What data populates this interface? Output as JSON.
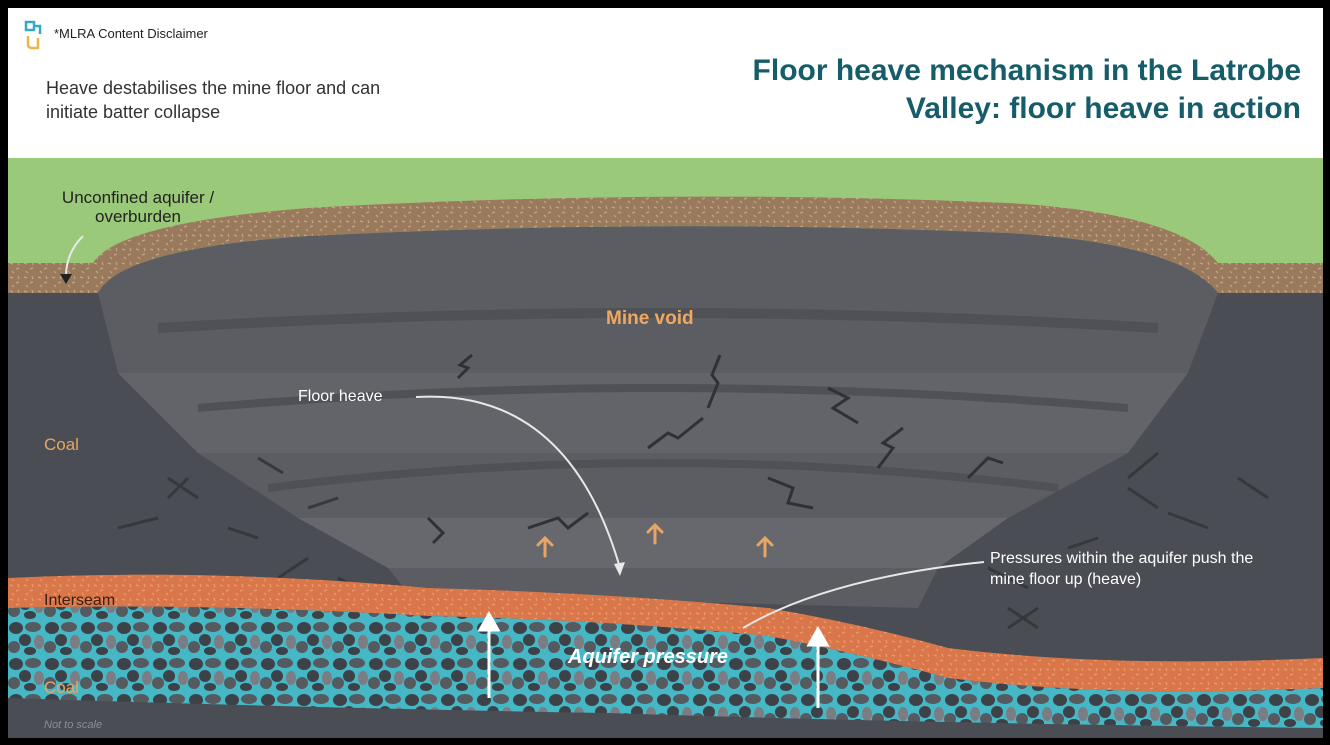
{
  "header": {
    "disclaimer": "*MLRA Content Disclaimer",
    "subtitle": "Heave destabilises the mine floor and can initiate batter collapse",
    "title": "Floor heave mechanism in the Latrobe Valley: floor heave in action"
  },
  "labels": {
    "unconfined_aquifer": "Unconfined aquifer / overburden",
    "mine_void": "Mine void",
    "floor_heave": "Floor heave",
    "coal_upper": "Coal",
    "interseam": "Interseam",
    "pressures": "Pressures within the aquifer push the mine floor up (heave)",
    "aquifer_pressure": "Aquifer pressure",
    "coal_lower": "Coal",
    "not_to_scale": "Not to scale"
  },
  "colors": {
    "grass": "#9bc97a",
    "overburden": "#9a7a5c",
    "coal": "#4a4d53",
    "pit": "#5b5d62",
    "interseam": "#d9774a",
    "aquifer": "#45b7c5",
    "mine_void_text": "#f0a860",
    "heave_arrow": "#e9a563",
    "title": "#165d6a"
  },
  "icons": {
    "logo": "mlra-logo-icon"
  }
}
